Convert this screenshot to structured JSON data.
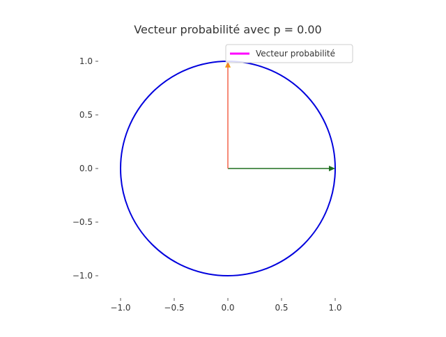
{
  "chart_data": {
    "type": "line",
    "title": "Vecteur probabilité avec p = 0.00",
    "xlabel": "",
    "ylabel": "",
    "xlim": [
      -1.2,
      1.2
    ],
    "ylim": [
      -1.2,
      1.2
    ],
    "xticks": [
      -1.0,
      -0.5,
      0.0,
      0.5,
      1.0
    ],
    "yticks": [
      -1.0,
      -0.5,
      0.0,
      0.5,
      1.0
    ],
    "xtick_labels": [
      "−1.0",
      "−0.5",
      "0.0",
      "0.5",
      "1.0"
    ],
    "ytick_labels": [
      "−1.0",
      "−0.5",
      "0.0",
      "0.5",
      "1.0"
    ],
    "grid": false,
    "aspect": "equal",
    "legend_position": "top-right",
    "circle": {
      "center": [
        0,
        0
      ],
      "radius": 1,
      "color": "#0000dd"
    },
    "vectors": [
      {
        "id": "x-axis-vector",
        "from": [
          0,
          0
        ],
        "to": [
          1,
          0
        ],
        "color": "#1f6e1f"
      },
      {
        "id": "y-axis-vector",
        "from": [
          0,
          0
        ],
        "to": [
          0,
          1
        ],
        "color": "#f0a000"
      },
      {
        "id": "probability-vector",
        "from": [
          0,
          0
        ],
        "to": [
          0,
          1
        ],
        "color": "#ff00ff"
      }
    ],
    "series": [
      {
        "name": "Vecteur probabilité",
        "color": "#ff00ff"
      }
    ]
  }
}
